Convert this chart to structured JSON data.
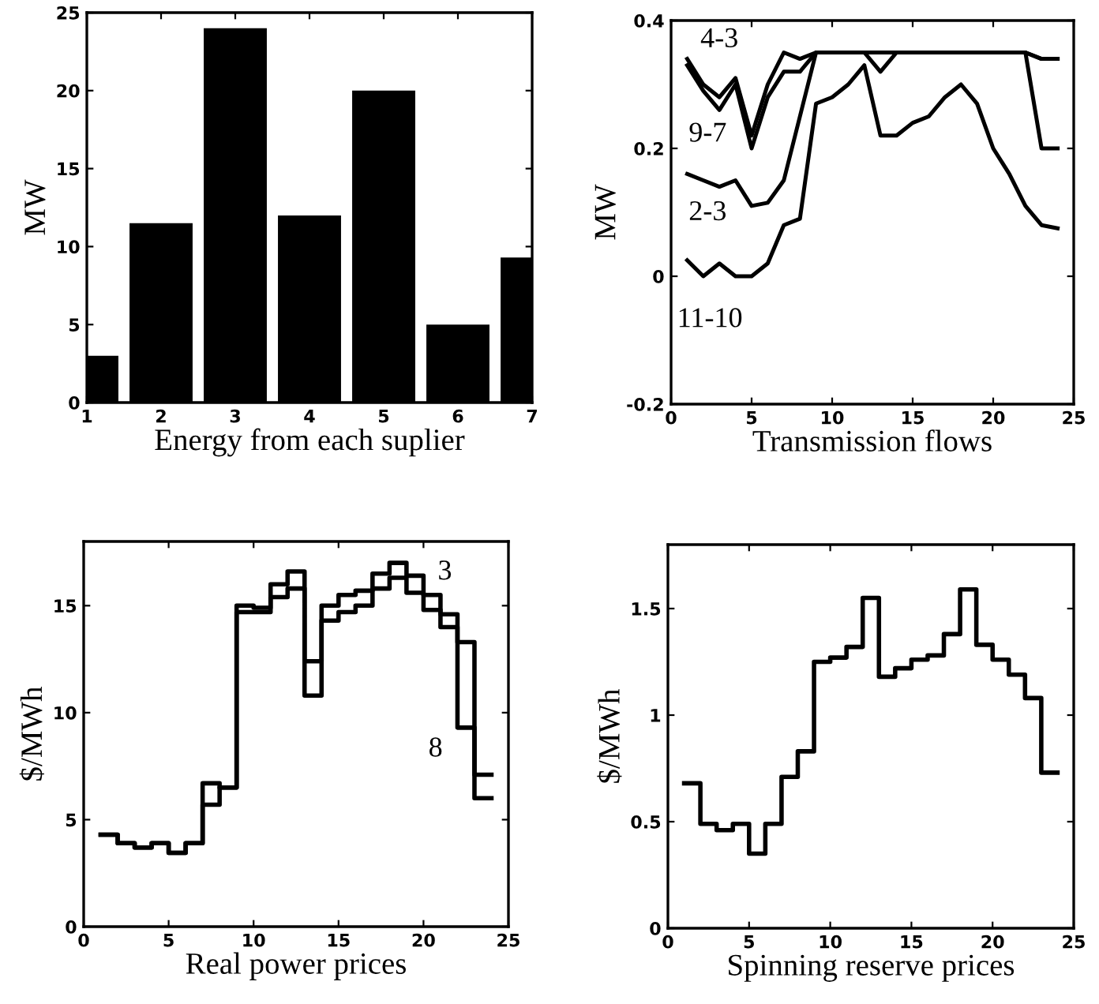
{
  "chart_data": [
    {
      "type": "bar",
      "xlabel": "Energy from each suplier",
      "ylabel": "MW",
      "x": [
        1,
        2,
        3,
        4,
        5,
        6,
        7
      ],
      "values": [
        3,
        11.5,
        24,
        12,
        20,
        5,
        9.3
      ],
      "color": "#000000",
      "xlim": [
        1,
        7
      ],
      "xticks": [
        1,
        2,
        3,
        4,
        5,
        6,
        7
      ],
      "ylim": [
        0,
        25
      ],
      "yticks": [
        0,
        5,
        10,
        15,
        20,
        25
      ],
      "grid": false
    },
    {
      "type": "line",
      "xlabel": "Transmission flows",
      "ylabel": "MW",
      "x": [
        1,
        2,
        3,
        4,
        5,
        6,
        7,
        8,
        9,
        10,
        11,
        12,
        13,
        14,
        15,
        16,
        17,
        18,
        19,
        20,
        21,
        22,
        23,
        24
      ],
      "xlim": [
        0,
        25
      ],
      "xticks": [
        0,
        5,
        10,
        15,
        20,
        25
      ],
      "ylim": [
        -0.2,
        0.4
      ],
      "yticks": [
        -0.2,
        0,
        0.2,
        0.4
      ],
      "grid": false,
      "series": [
        {
          "name": "4-3",
          "color": "#000000",
          "values": [
            0.34,
            0.3,
            0.28,
            0.31,
            0.22,
            0.3,
            0.35,
            0.34,
            0.35,
            0.35,
            0.35,
            0.35,
            0.32,
            0.35,
            0.35,
            0.35,
            0.35,
            0.35,
            0.35,
            0.35,
            0.35,
            0.35,
            0.34,
            0.34
          ]
        },
        {
          "name": "9-7",
          "color": "#000000",
          "values": [
            0.33,
            0.29,
            0.26,
            0.3,
            0.2,
            0.28,
            0.32,
            0.32,
            0.35,
            0.35,
            0.35,
            0.35,
            0.35,
            0.35,
            0.35,
            0.35,
            0.35,
            0.35,
            0.35,
            0.35,
            0.35,
            0.35,
            0.2,
            0.2
          ]
        },
        {
          "name": "2-3",
          "color": "#000000",
          "values": [
            0.16,
            0.15,
            0.14,
            0.15,
            0.11,
            0.115,
            0.15,
            0.25,
            0.35,
            0.35,
            0.35,
            0.35,
            0.35,
            0.35,
            0.35,
            0.35,
            0.35,
            0.35,
            0.35,
            0.35,
            0.35,
            0.35,
            0.34,
            0.34
          ]
        },
        {
          "name": "11-10",
          "color": "#000000",
          "values": [
            0.025,
            0.0,
            0.02,
            0.0,
            0.0,
            0.02,
            0.08,
            0.09,
            0.27,
            0.28,
            0.3,
            0.33,
            0.22,
            0.22,
            0.24,
            0.25,
            0.28,
            0.3,
            0.27,
            0.2,
            0.16,
            0.11,
            0.08,
            0.075
          ]
        }
      ]
    },
    {
      "type": "step",
      "xlabel": "Real power prices",
      "ylabel": "$/MWh",
      "x": [
        1,
        2,
        3,
        4,
        5,
        6,
        7,
        8,
        9,
        10,
        11,
        12,
        13,
        14,
        15,
        16,
        17,
        18,
        19,
        20,
        21,
        22,
        23,
        24
      ],
      "xlim": [
        0,
        25
      ],
      "xticks": [
        0,
        5,
        10,
        15,
        20,
        25
      ],
      "ylim": [
        0,
        18
      ],
      "yticks": [
        0,
        5,
        10,
        15
      ],
      "grid": false,
      "series": [
        {
          "name": "3",
          "color": "#000000",
          "values": [
            4.3,
            3.9,
            3.7,
            3.9,
            3.45,
            3.9,
            6.7,
            6.5,
            15.0,
            14.9,
            16.0,
            16.6,
            12.4,
            15.0,
            15.5,
            15.7,
            16.5,
            17.0,
            16.4,
            15.5,
            14.6,
            13.3,
            7.1,
            7.1
          ]
        },
        {
          "name": "8",
          "color": "#000000",
          "values": [
            4.3,
            3.9,
            3.7,
            3.9,
            3.45,
            3.9,
            5.7,
            6.5,
            14.7,
            14.7,
            15.4,
            15.8,
            10.8,
            14.3,
            14.7,
            15.0,
            15.8,
            16.3,
            15.6,
            14.8,
            14.0,
            9.3,
            6.0,
            6.0
          ]
        }
      ]
    },
    {
      "type": "step",
      "xlabel": "Spinning reserve prices",
      "ylabel": "$/MWh",
      "x": [
        1,
        2,
        3,
        4,
        5,
        6,
        7,
        8,
        9,
        10,
        11,
        12,
        13,
        14,
        15,
        16,
        17,
        18,
        19,
        20,
        21,
        22,
        23,
        24
      ],
      "xlim": [
        0,
        25
      ],
      "xticks": [
        0,
        5,
        10,
        15,
        20,
        25
      ],
      "ylim": [
        0,
        1.8
      ],
      "yticks": [
        0,
        0.5,
        1,
        1.5
      ],
      "grid": false,
      "series": [
        {
          "color": "#000000",
          "values": [
            0.68,
            0.49,
            0.46,
            0.49,
            0.35,
            0.49,
            0.71,
            0.83,
            1.25,
            1.27,
            1.32,
            1.55,
            1.18,
            1.22,
            1.26,
            1.28,
            1.38,
            1.59,
            1.33,
            1.26,
            1.19,
            1.08,
            0.73,
            0.73
          ]
        }
      ]
    }
  ]
}
